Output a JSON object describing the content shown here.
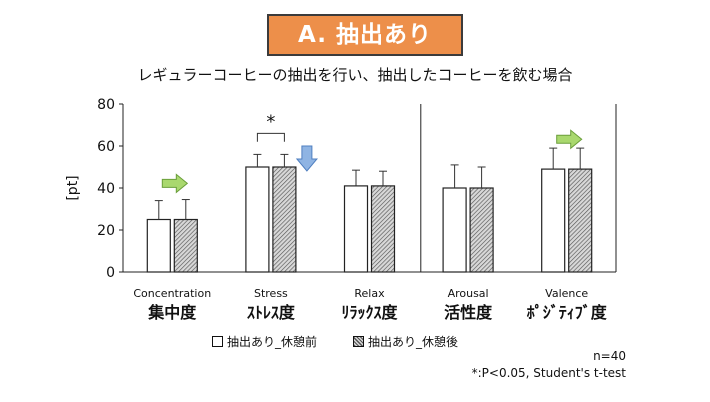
{
  "header": {
    "title": "A. 抽出あり"
  },
  "subtitle": "レギュラーコーヒーの抽出を行い、抽出したコーヒーを飲む場合",
  "footnote": {
    "n": "n=40",
    "sig": "*:P<0.05, Student's t-test"
  },
  "colors": {
    "title_bg": "#ed8f4a",
    "arrow_green": "#a9d86e",
    "arrow_blue": "#8fb4e3"
  },
  "chart_data": {
    "type": "bar",
    "ylabel": "[pt]",
    "ylim": [
      0,
      80
    ],
    "yticks": [
      0,
      20,
      40,
      60,
      80
    ],
    "grid": false,
    "legend_position": "bottom",
    "categories": [
      {
        "en": "Concentration",
        "ja": "集中度"
      },
      {
        "en": "Stress",
        "ja": "ｽﾄﾚｽ度"
      },
      {
        "en": "Relax",
        "ja": "ﾘﾗｯｸｽ度"
      },
      {
        "en": "Arousal",
        "ja": "活性度"
      },
      {
        "en": "Valence",
        "ja": "ﾎﾟｼﾞﾃｨﾌﾞ度"
      }
    ],
    "series": [
      {
        "name": "抽出あり_休憩前",
        "values": [
          25,
          50,
          41,
          40,
          49
        ],
        "errors": [
          9,
          6,
          7.5,
          11,
          10
        ]
      },
      {
        "name": "抽出あり_休憩後",
        "values": [
          25,
          50,
          41,
          40,
          49
        ],
        "errors": [
          9.5,
          6,
          7,
          10,
          10
        ]
      }
    ],
    "annotations": [
      {
        "category": 1,
        "label": "*"
      }
    ],
    "arrows": [
      {
        "category": 0,
        "icon": "arrow-right-icon",
        "color": "green"
      },
      {
        "category": 1,
        "icon": "arrow-down-icon",
        "color": "blue"
      },
      {
        "category": 4,
        "icon": "arrow-right-icon",
        "color": "green"
      }
    ],
    "divider_after_category": 2
  }
}
